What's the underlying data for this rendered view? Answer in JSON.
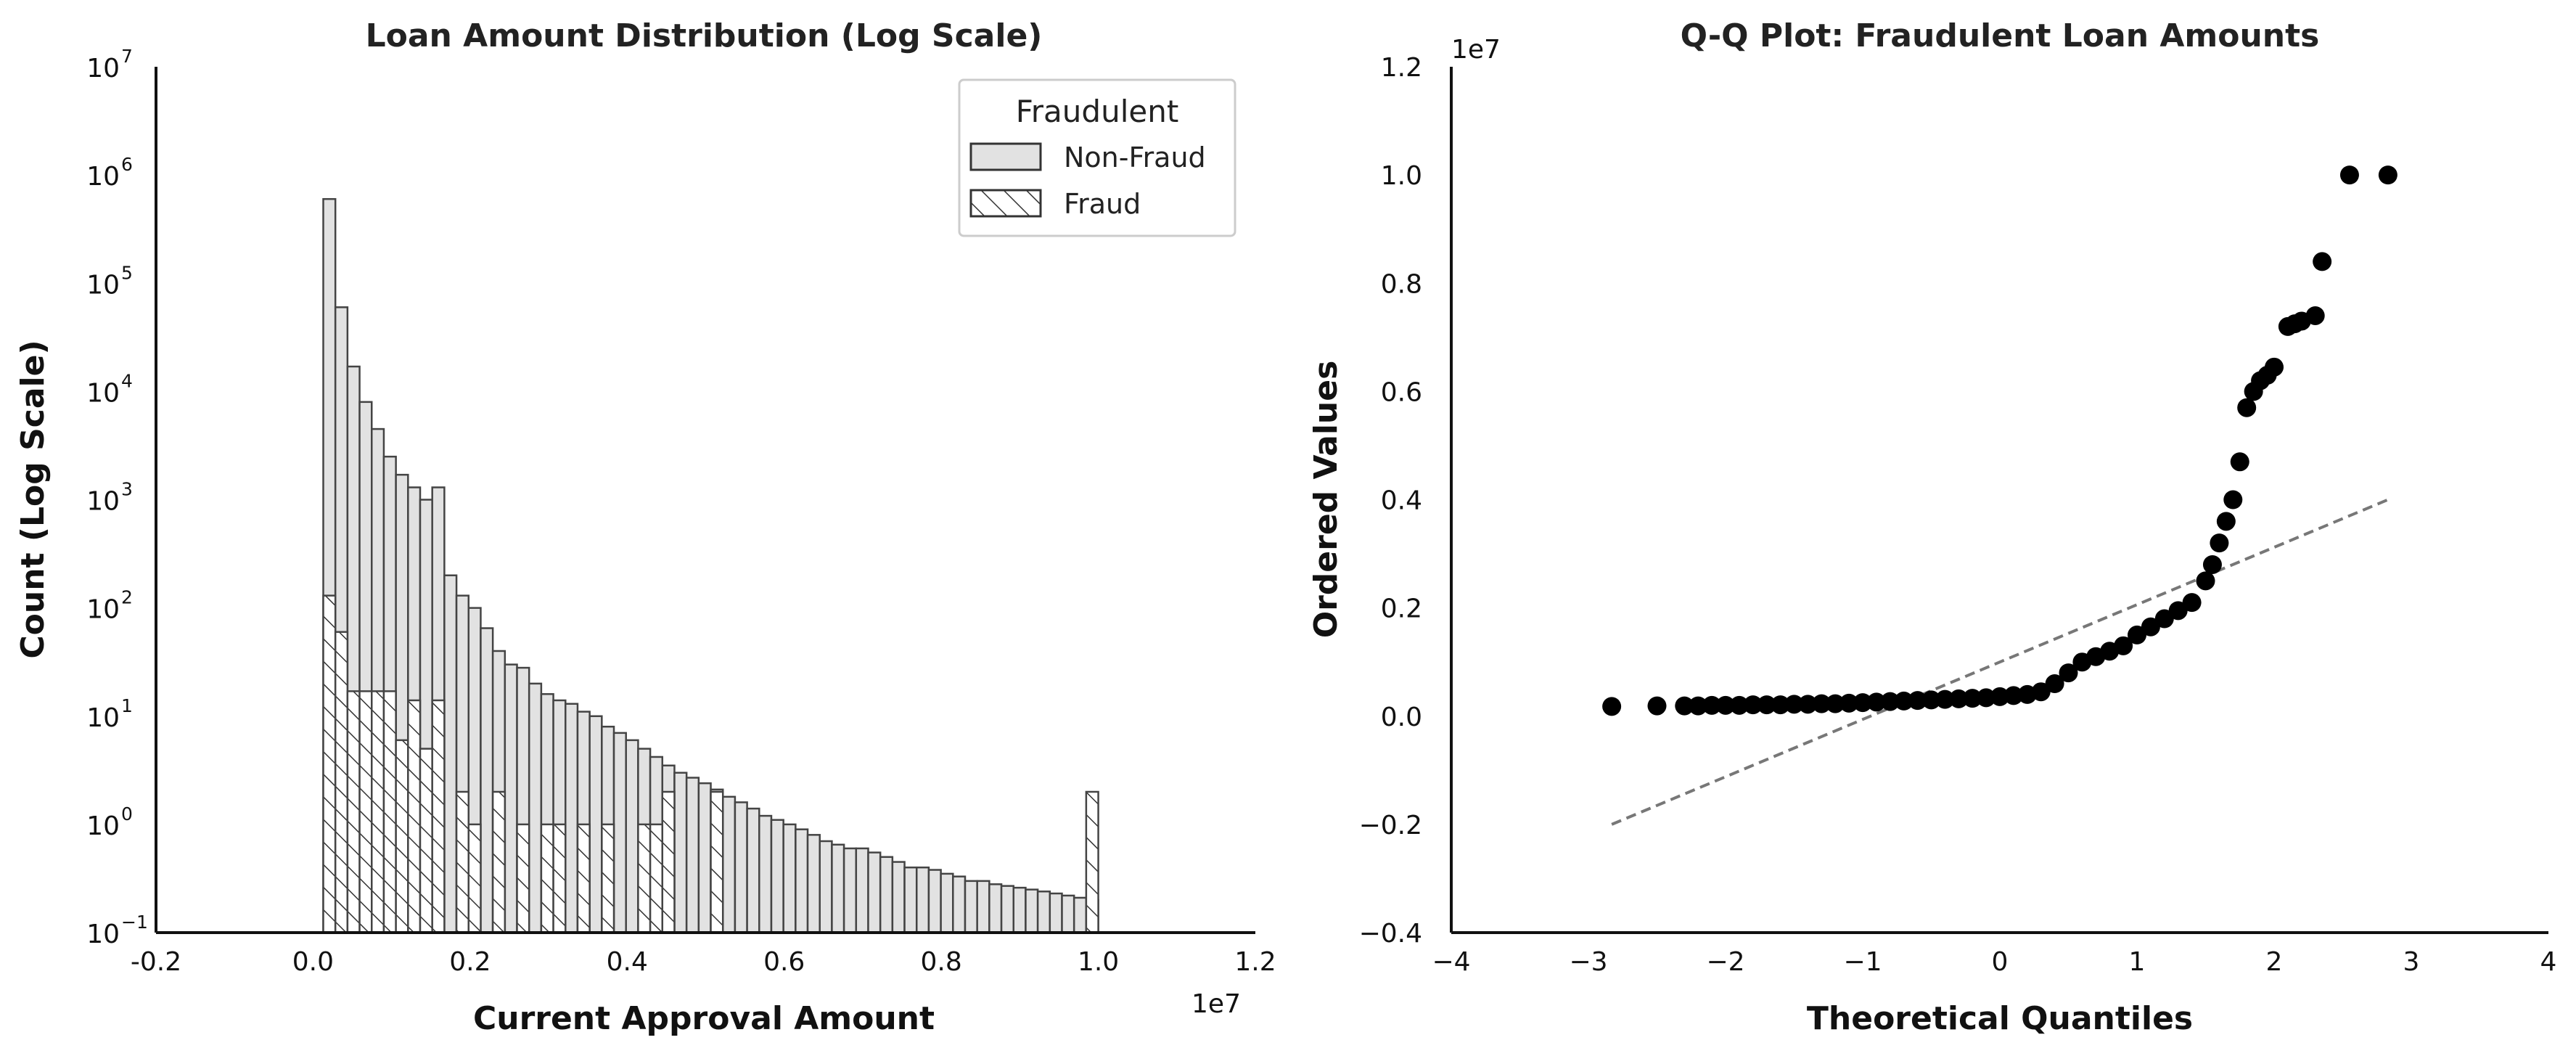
{
  "chart_data": [
    {
      "type": "bar",
      "title": "Loan Amount Distribution (Log Scale)",
      "xlabel": "Current Approval Amount",
      "ylabel": "Count (Log Scale)",
      "x_offset_label": "1e7",
      "xlim": [
        -0.2,
        1.2
      ],
      "yscale": "log",
      "ylim_exp": [
        -1,
        7
      ],
      "x_ticks": [
        "-0.2",
        "0.0",
        "0.2",
        "0.4",
        "0.6",
        "0.8",
        "1.0",
        "1.2"
      ],
      "y_ticks": [
        {
          "base": "10",
          "exp": "−1"
        },
        {
          "base": "10",
          "exp": "0"
        },
        {
          "base": "10",
          "exp": "1"
        },
        {
          "base": "10",
          "exp": "2"
        },
        {
          "base": "10",
          "exp": "3"
        },
        {
          "base": "10",
          "exp": "4"
        },
        {
          "base": "10",
          "exp": "5"
        },
        {
          "base": "10",
          "exp": "6"
        },
        {
          "base": "10",
          "exp": "7"
        }
      ],
      "bin_range": [
        0.013,
        1.0
      ],
      "legend": {
        "title": "Fraudulent",
        "position": "upper-right",
        "entries": [
          {
            "label": "Non-Fraud",
            "style": "solid"
          },
          {
            "label": "Fraud",
            "style": "hatched"
          }
        ]
      },
      "series": [
        {
          "name": "Non-Fraud",
          "values": [
            600000,
            60000,
            17000,
            8000,
            4500,
            2500,
            1700,
            1300,
            1000,
            1300,
            200,
            130,
            100,
            65,
            40,
            30,
            28,
            20,
            16,
            14,
            13,
            11,
            10,
            8,
            7,
            6,
            5,
            4.2,
            3.5,
            3.0,
            2.7,
            2.4,
            2.1,
            1.8,
            1.6,
            1.4,
            1.2,
            1.1,
            1.0,
            0.9,
            0.8,
            0.7,
            0.65,
            0.6,
            0.6,
            0.55,
            0.5,
            0.45,
            0.4,
            0.4,
            0.38,
            0.35,
            0.33,
            0.3,
            0.3,
            0.28,
            0.27,
            0.26,
            0.25,
            0.24,
            0.23,
            0.22,
            0.21,
            0.2
          ]
        },
        {
          "name": "Fraud",
          "values": [
            130,
            60,
            17,
            17,
            17,
            17,
            6,
            14,
            5,
            14,
            0.1,
            2,
            1,
            0.1,
            2,
            0.1,
            1,
            0.1,
            1,
            1,
            0.1,
            1,
            0.1,
            1,
            0.1,
            0.1,
            1,
            1,
            2,
            0.1,
            0.1,
            0.1,
            2,
            0.1,
            0.1,
            0.1,
            0.1,
            0.1,
            0.1,
            0.1,
            0.1,
            0.1,
            0.1,
            0.1,
            0.1,
            0.1,
            0.1,
            0.1,
            0.1,
            0.1,
            0.1,
            0.1,
            0.1,
            0.1,
            0.1,
            0.1,
            0.1,
            0.1,
            0.1,
            0.1,
            0.1,
            0.1,
            0.1,
            2
          ]
        }
      ]
    },
    {
      "type": "scatter",
      "title": "Q-Q Plot: Fraudulent Loan Amounts",
      "xlabel": "Theoretical Quantiles",
      "ylabel": "Ordered Values",
      "y_offset_label": "1e7",
      "xlim": [
        -4,
        4
      ],
      "ylim": [
        -0.4,
        1.2
      ],
      "x_ticks": [
        "−4",
        "−3",
        "−2",
        "−1",
        "0",
        "1",
        "2",
        "3",
        "4"
      ],
      "y_ticks": [
        "−0.4",
        "−0.2",
        "0.0",
        "0.2",
        "0.4",
        "0.6",
        "0.8",
        "1.0",
        "1.2"
      ],
      "reference_line": {
        "x": [
          -2.83,
          2.83
        ],
        "y": [
          -0.2,
          0.4
        ],
        "style": "dashed"
      },
      "points": [
        [
          -2.83,
          0.018
        ],
        [
          -2.5,
          0.019
        ],
        [
          -2.3,
          0.019
        ],
        [
          -2.2,
          0.019
        ],
        [
          -2.1,
          0.02
        ],
        [
          -2.0,
          0.02
        ],
        [
          -1.9,
          0.02
        ],
        [
          -1.8,
          0.021
        ],
        [
          -1.7,
          0.021
        ],
        [
          -1.6,
          0.021
        ],
        [
          -1.5,
          0.022
        ],
        [
          -1.4,
          0.022
        ],
        [
          -1.3,
          0.023
        ],
        [
          -1.2,
          0.023
        ],
        [
          -1.1,
          0.024
        ],
        [
          -1.0,
          0.025
        ],
        [
          -0.9,
          0.026
        ],
        [
          -0.8,
          0.027
        ],
        [
          -0.7,
          0.028
        ],
        [
          -0.6,
          0.029
        ],
        [
          -0.5,
          0.03
        ],
        [
          -0.4,
          0.031
        ],
        [
          -0.3,
          0.032
        ],
        [
          -0.2,
          0.033
        ],
        [
          -0.1,
          0.034
        ],
        [
          0.0,
          0.036
        ],
        [
          0.1,
          0.038
        ],
        [
          0.2,
          0.04
        ],
        [
          0.3,
          0.045
        ],
        [
          0.4,
          0.06
        ],
        [
          0.5,
          0.08
        ],
        [
          0.6,
          0.1
        ],
        [
          0.7,
          0.11
        ],
        [
          0.8,
          0.12
        ],
        [
          0.9,
          0.13
        ],
        [
          1.0,
          0.15
        ],
        [
          1.1,
          0.165
        ],
        [
          1.2,
          0.18
        ],
        [
          1.3,
          0.195
        ],
        [
          1.4,
          0.21
        ],
        [
          1.5,
          0.25
        ],
        [
          1.55,
          0.28
        ],
        [
          1.6,
          0.32
        ],
        [
          1.65,
          0.36
        ],
        [
          1.7,
          0.4
        ],
        [
          1.75,
          0.47
        ],
        [
          1.8,
          0.57
        ],
        [
          1.85,
          0.6
        ],
        [
          1.9,
          0.62
        ],
        [
          1.95,
          0.63
        ],
        [
          2.0,
          0.645
        ],
        [
          2.1,
          0.72
        ],
        [
          2.15,
          0.725
        ],
        [
          2.2,
          0.73
        ],
        [
          2.3,
          0.74
        ],
        [
          2.35,
          0.84
        ],
        [
          2.55,
          1.0
        ],
        [
          2.83,
          1.0
        ]
      ]
    }
  ]
}
